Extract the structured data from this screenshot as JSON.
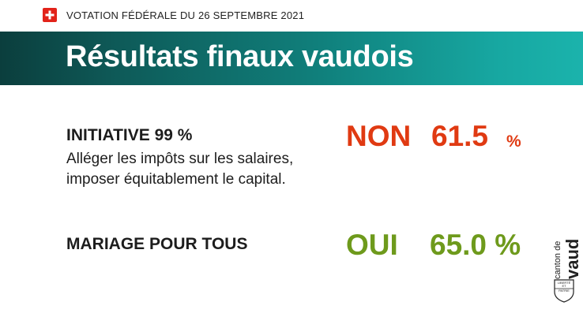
{
  "header": {
    "vote_label": "VOTATION FÉDÉRALE DU 26 SEPTEMBRE 2021"
  },
  "banner": {
    "title": "Résultats finaux vaudois"
  },
  "objects": [
    {
      "title": "INITIATIVE 99 %",
      "description_lines": [
        "Alléger les impôts sur les salaires,",
        "imposer équitablement le capital."
      ],
      "answer": "NON",
      "percent": "61.5",
      "percent_sign": "%",
      "color": "#e03a12"
    },
    {
      "title": "MARIAGE POUR TOUS",
      "answer": "OUI",
      "percent": "65.0 %",
      "color": "#6e9a1c"
    }
  ],
  "logo": {
    "small_text": "canton de",
    "big_text": "vaud",
    "shield_text": [
      "LIBERTÉ",
      "ET",
      "PATRIE"
    ]
  },
  "colors": {
    "swiss_flag": "#e2231a",
    "banner_dark": "#0b3e3d",
    "banner_light": "#1bb3ac"
  }
}
